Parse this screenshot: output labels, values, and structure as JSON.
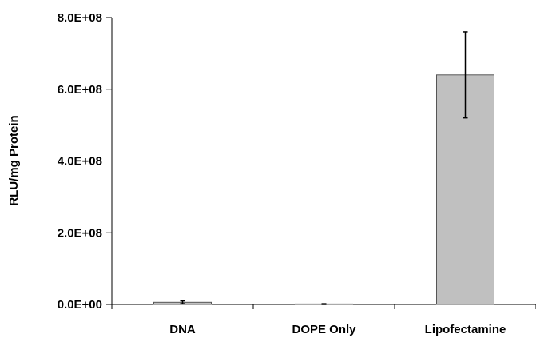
{
  "chart_data": {
    "type": "bar",
    "title": "",
    "xlabel": "",
    "ylabel": "RLU/mg Protein",
    "categories": [
      "DNA",
      "DOPE Only",
      "Lipofectamine"
    ],
    "series": [
      {
        "values": [
          6000000,
          1000000,
          640000000
        ],
        "errors": [
          4000000,
          1000000,
          120000000
        ],
        "color": "#c0c0c0"
      }
    ],
    "ylim": [
      0,
      800000000
    ],
    "yticks": [
      0,
      200000000,
      400000000,
      600000000,
      800000000
    ],
    "ytick_labels": [
      "0.0E+00",
      "2.0E+08",
      "4.0E+08",
      "6.0E+08",
      "8.0E+08"
    ],
    "grid": false,
    "legend": "none"
  }
}
